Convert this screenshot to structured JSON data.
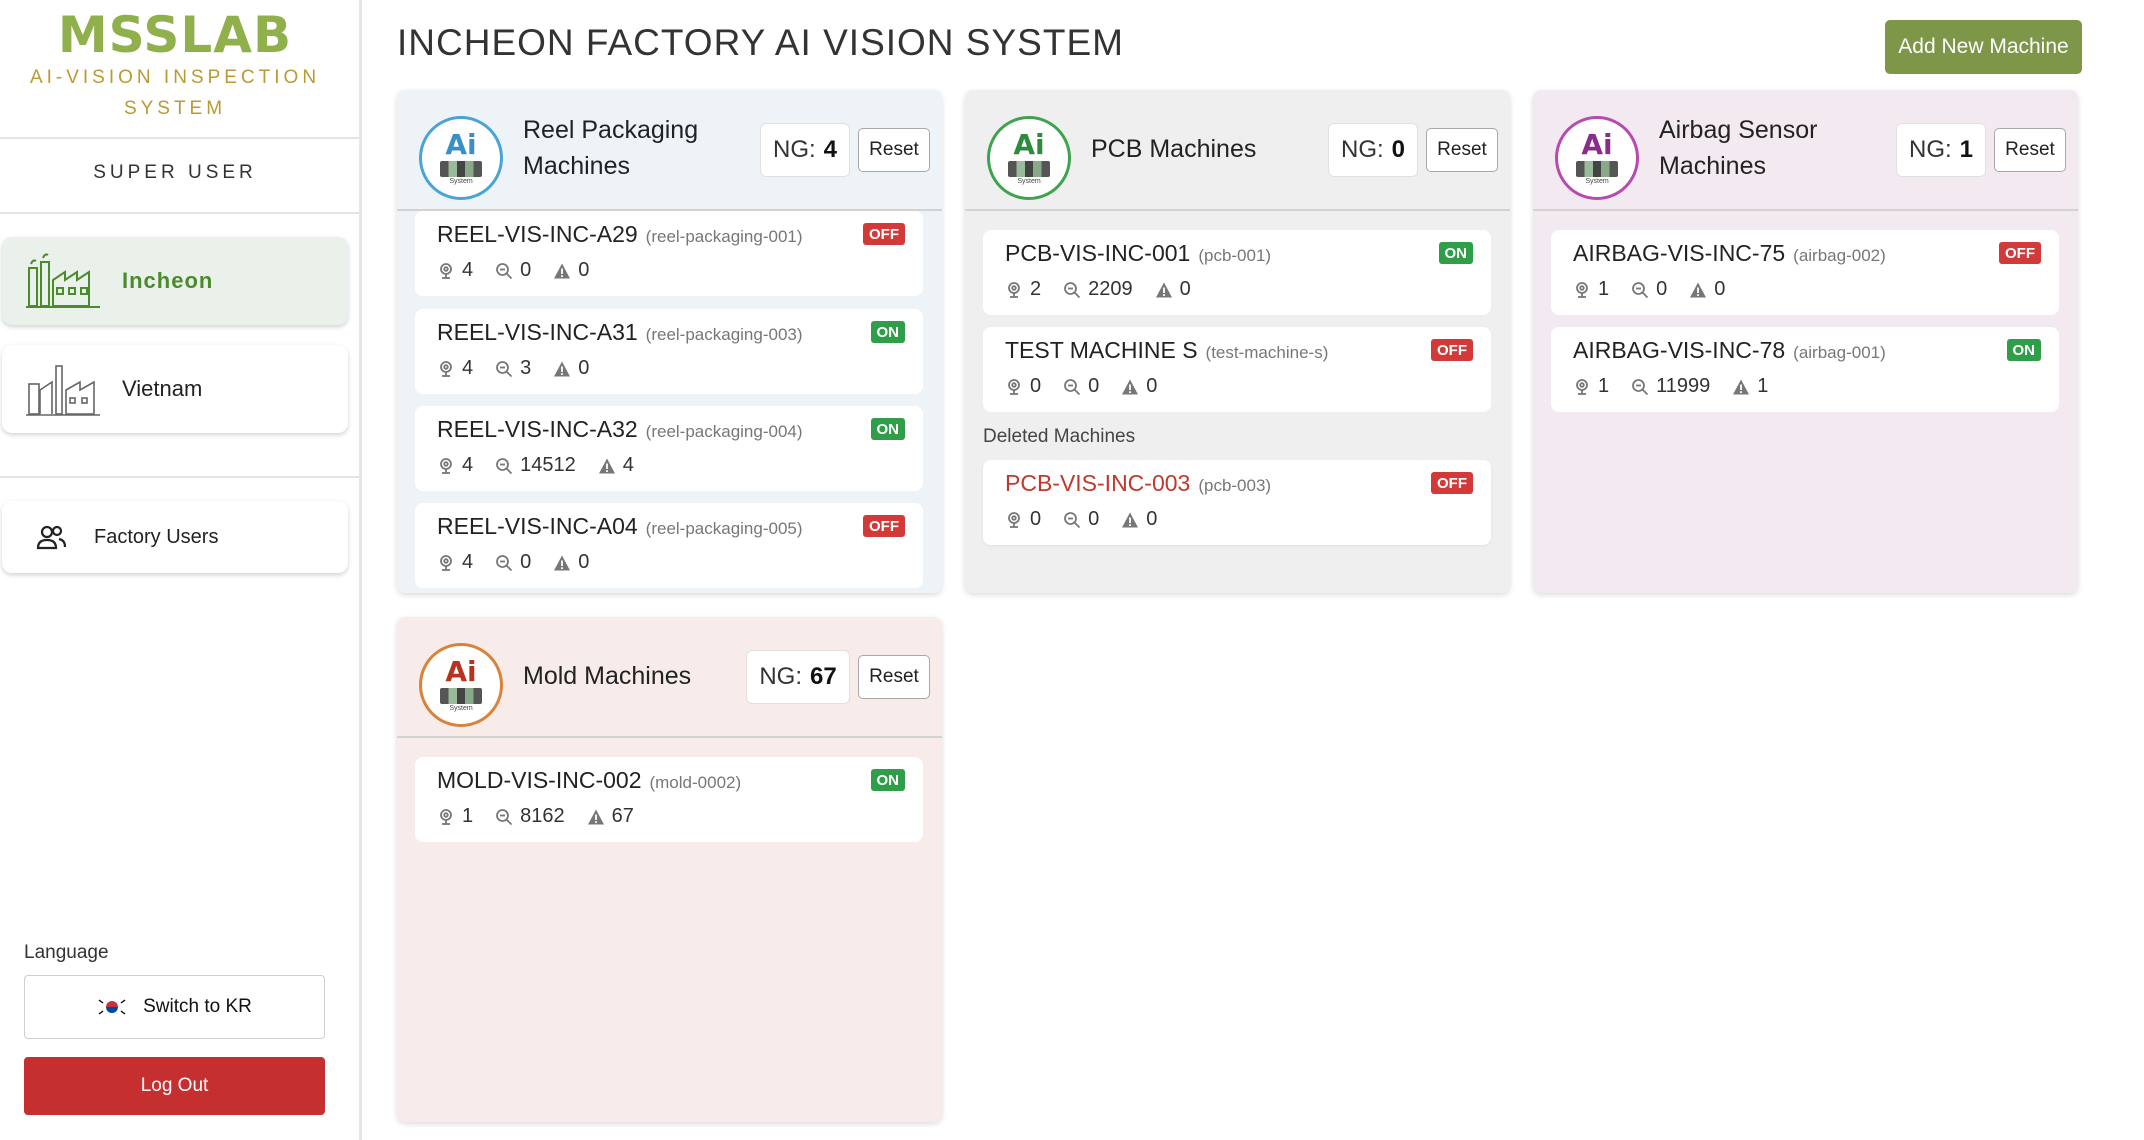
{
  "sidebar": {
    "logo_mark": "MSSLAB",
    "logo_line1": "AI-VISION INSPECTION",
    "logo_line2": "SYSTEM",
    "role": "SUPER USER",
    "factories": [
      {
        "label": "Incheon",
        "active": true
      },
      {
        "label": "Vietnam",
        "active": false
      }
    ],
    "factory_users_label": "Factory Users",
    "language_label": "Language",
    "switch_lang_label": "Switch to KR",
    "logout_label": "Log Out"
  },
  "header": {
    "title": "INCHEON FACTORY AI VISION SYSTEM",
    "add_machine_label": "Add New Machine"
  },
  "groups": {
    "reel": {
      "title_line1": "Reel Packaging",
      "title_line2": "Machines",
      "ng_label": "NG:",
      "ng_value": "4",
      "reset_label": "Reset",
      "machines": [
        {
          "name": "REEL-VIS-INC-A29",
          "id": "(reel-packaging-001)",
          "status": "OFF",
          "cameras": "4",
          "inspections": "0",
          "ng": "0"
        },
        {
          "name": "REEL-VIS-INC-A31",
          "id": "(reel-packaging-003)",
          "status": "ON",
          "cameras": "4",
          "inspections": "3",
          "ng": "0"
        },
        {
          "name": "REEL-VIS-INC-A32",
          "id": "(reel-packaging-004)",
          "status": "ON",
          "cameras": "4",
          "inspections": "14512",
          "ng": "4"
        },
        {
          "name": "REEL-VIS-INC-A04",
          "id": "(reel-packaging-005)",
          "status": "OFF",
          "cameras": "4",
          "inspections": "0",
          "ng": "0"
        }
      ]
    },
    "pcb": {
      "title_line1": "PCB Machines",
      "ng_label": "NG:",
      "ng_value": "0",
      "reset_label": "Reset",
      "machines": [
        {
          "name": "PCB-VIS-INC-001",
          "id": "(pcb-001)",
          "status": "ON",
          "cameras": "2",
          "inspections": "2209",
          "ng": "0"
        },
        {
          "name": "TEST MACHINE S",
          "id": "(test-machine-s)",
          "status": "OFF",
          "cameras": "0",
          "inspections": "0",
          "ng": "0"
        }
      ],
      "deleted_label": "Deleted Machines",
      "deleted_machines": [
        {
          "name": "PCB-VIS-INC-003",
          "id": "(pcb-003)",
          "status": "OFF",
          "cameras": "0",
          "inspections": "0",
          "ng": "0"
        }
      ]
    },
    "airbag": {
      "title_line1": "Airbag Sensor",
      "title_line2": "Machines",
      "ng_label": "NG:",
      "ng_value": "1",
      "reset_label": "Reset",
      "machines": [
        {
          "name": "AIRBAG-VIS-INC-75",
          "id": "(airbag-002)",
          "status": "OFF",
          "cameras": "1",
          "inspections": "0",
          "ng": "0"
        },
        {
          "name": "AIRBAG-VIS-INC-78",
          "id": "(airbag-001)",
          "status": "ON",
          "cameras": "1",
          "inspections": "11999",
          "ng": "1"
        }
      ]
    },
    "mold": {
      "title_line1": "Mold Machines",
      "ng_label": "NG:",
      "ng_value": "67",
      "reset_label": "Reset",
      "machines": [
        {
          "name": "MOLD-VIS-INC-002",
          "id": "(mold-0002)",
          "status": "ON",
          "cameras": "1",
          "inspections": "8162",
          "ng": "67"
        }
      ]
    }
  },
  "badge": {
    "text": "Ai",
    "sub": "System"
  },
  "colors": {
    "brand_green": "#8fb04a",
    "brand_gold": "#b99a33",
    "active_nav": "#4c8a2e",
    "add_button": "#7d9647",
    "logout": "#c62f2f",
    "status_on": "#2e9e48",
    "status_off": "#d23a3a",
    "reel_bg": "#eef3f8",
    "pcb_bg": "#f0efef",
    "airbag_bg": "#f2eaf0",
    "mold_bg": "#f8ecea"
  }
}
